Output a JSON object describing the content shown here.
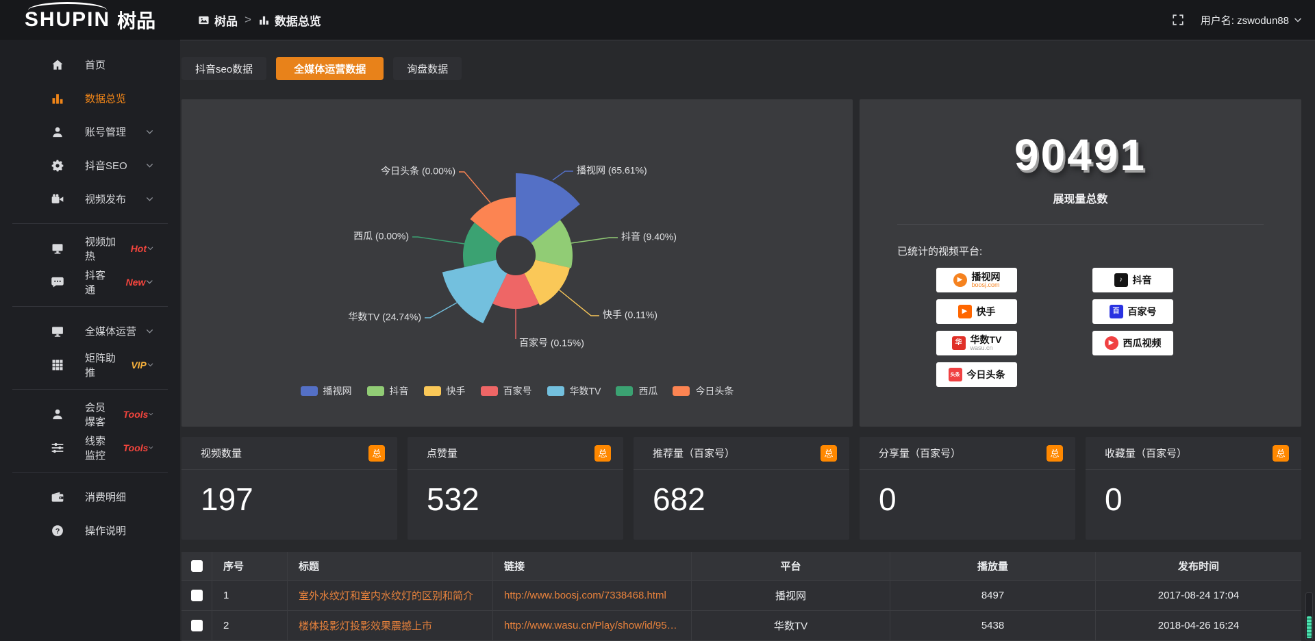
{
  "topbar": {
    "logo_en": "SHUPIN",
    "logo_cn": "树品",
    "breadcrumb": [
      "树品",
      "数据总览"
    ],
    "breadcrumb_separator": ">",
    "username": "用户名: zswodun88"
  },
  "sidebar": {
    "items": [
      {
        "label": "首页",
        "icon": "home"
      },
      {
        "label": "数据总览",
        "icon": "chart-bars",
        "active": true
      },
      {
        "label": "账号管理",
        "icon": "user",
        "chevron": true
      },
      {
        "label": "抖音SEO",
        "icon": "gear",
        "chevron": true
      },
      {
        "label": "视频发布",
        "icon": "video-camera",
        "chevron": true,
        "divider_after": true
      },
      {
        "label": "视频加热",
        "icon": "screen",
        "tag": "Hot",
        "tag_color": "#f5453d",
        "chevron": true
      },
      {
        "label": "抖客通",
        "icon": "chat",
        "tag": "New",
        "tag_color": "#f5453d",
        "chevron": true,
        "divider_after": true
      },
      {
        "label": "全媒体运营",
        "icon": "monitor",
        "chevron": true
      },
      {
        "label": "矩阵助推",
        "icon": "grid",
        "tag": "VIP",
        "tag_color": "#f7b13c",
        "chevron": true,
        "divider_after": true
      },
      {
        "label": "会员爆客",
        "icon": "user",
        "tag": "Tools",
        "tag_color": "#f5453d",
        "chevron": true
      },
      {
        "label": "线索监控",
        "icon": "sliders",
        "tag": "Tools",
        "tag_color": "#f5453d",
        "chevron": true,
        "divider_after": true
      },
      {
        "label": "消费明细",
        "icon": "wallet"
      },
      {
        "label": "操作说明",
        "icon": "question"
      }
    ]
  },
  "tabs": [
    {
      "label": "抖音seo数据",
      "active": false
    },
    {
      "label": "全媒体运营数据",
      "active": true
    },
    {
      "label": "询盘数据",
      "active": false
    }
  ],
  "chart_data": {
    "type": "pie",
    "variant": "nightingale-rose",
    "legend_position": "bottom",
    "label_format": "{name} ({pct}%)",
    "series": [
      {
        "name": "播视网",
        "pct": 65.61,
        "color": "#5470c6"
      },
      {
        "name": "抖音",
        "pct": 9.4,
        "color": "#91cc75"
      },
      {
        "name": "快手",
        "pct": 0.11,
        "color": "#fac858"
      },
      {
        "name": "百家号",
        "pct": 0.15,
        "color": "#ee6666"
      },
      {
        "name": "华数TV",
        "pct": 24.74,
        "color": "#73c0de"
      },
      {
        "name": "西瓜",
        "pct": 0.0,
        "color": "#3ba272"
      },
      {
        "name": "今日头条",
        "pct": 0.0,
        "color": "#fc8452"
      }
    ]
  },
  "summary": {
    "total": "90491",
    "total_label": "展现量总数",
    "platforms_heading": "已统计的视频平台:",
    "platforms": [
      {
        "name": "播视网",
        "sub": "boosj.com",
        "sub_color": "#f5821f",
        "icon_glyph": "▶",
        "icon_bg": "#f5821f",
        "icon_round": true
      },
      {
        "name": "抖音",
        "icon_glyph": "♪",
        "icon_bg": "#141414"
      },
      {
        "name": "快手",
        "icon_glyph": "▶",
        "icon_bg": "#ff6600"
      },
      {
        "name": "百家号",
        "icon_glyph": "百",
        "icon_bg": "#2932e1"
      },
      {
        "name": "华数TV",
        "sub": "wasu.cn",
        "sub_color": "#9a9a9a",
        "icon_glyph": "华",
        "icon_bg": "#e03028"
      },
      {
        "name": "西瓜视频",
        "icon_glyph": "▶",
        "icon_bg": "#f04142",
        "icon_round": true
      },
      {
        "name": "今日头条",
        "icon_glyph": "头条",
        "icon_bg": "#f04142",
        "icon_small": true
      }
    ]
  },
  "stat_cards": [
    {
      "label": "视频数量",
      "badge": "总",
      "value": "197"
    },
    {
      "label": "点赞量",
      "badge": "总",
      "value": "532"
    },
    {
      "label": "推荐量（百家号）",
      "badge": "总",
      "value": "682"
    },
    {
      "label": "分享量（百家号）",
      "badge": "总",
      "value": "0"
    },
    {
      "label": "收藏量（百家号）",
      "badge": "总",
      "value": "0"
    }
  ],
  "table": {
    "headers": [
      "序号",
      "标题",
      "链接",
      "平台",
      "播放量",
      "发布时间"
    ],
    "rows": [
      {
        "no": "1",
        "title": "室外水纹灯和室内水纹灯的区别和简介",
        "link": "http://www.boosj.com/7338468.html",
        "platform": "播视网",
        "plays": "8497",
        "time": "2017-08-24 17:04"
      },
      {
        "no": "2",
        "title": "楼体投影灯投影效果震撼上市",
        "link": "http://www.wasu.cn/Play/show/id/952…",
        "platform": "华数TV",
        "plays": "5438",
        "time": "2018-04-26 16:24"
      }
    ]
  },
  "colors": {
    "accent": "#e8821a",
    "sidebar_active": "#f08518",
    "badge": "#ff8800",
    "link": "#e8823c",
    "hot_tag": "#f5453d",
    "vip_tag": "#f7b13c"
  }
}
